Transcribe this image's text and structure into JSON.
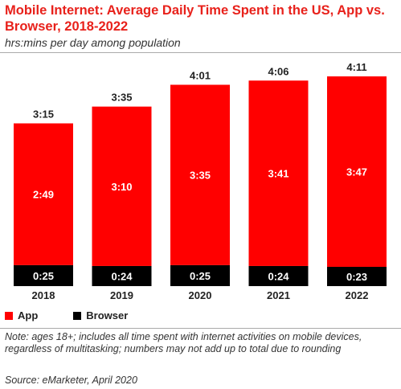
{
  "header": {
    "title": "Mobile Internet: Average Daily Time Spent in the US, App vs. Browser, 2018-2022",
    "subtitle": "hrs:mins per day among population"
  },
  "chart_data": {
    "type": "bar",
    "stacked": true,
    "categories": [
      "2018",
      "2019",
      "2020",
      "2021",
      "2022"
    ],
    "series": [
      {
        "name": "App",
        "color": "#ff0000",
        "values": [
          169,
          190,
          215,
          221,
          227
        ],
        "labels": [
          "2:49",
          "3:10",
          "3:35",
          "3:41",
          "3:47"
        ]
      },
      {
        "name": "Browser",
        "color": "#000000",
        "values": [
          25,
          24,
          25,
          24,
          23
        ],
        "labels": [
          "0:25",
          "0:24",
          "0:25",
          "0:24",
          "0:23"
        ]
      }
    ],
    "totals": [
      195,
      215,
      241,
      246,
      251
    ],
    "total_labels": [
      "3:15",
      "3:35",
      "4:01",
      "4:06",
      "4:11"
    ],
    "units": "minutes",
    "ylim": [
      0,
      251
    ],
    "grid": false,
    "legend_position": "bottom-left"
  },
  "legend": {
    "items": [
      {
        "label": "App",
        "color": "#ff0000"
      },
      {
        "label": "Browser",
        "color": "#000000"
      }
    ]
  },
  "footer": {
    "note": "Note: ages 18+; includes all time spent with internet activities on mobile devices, regardless of multitasking; numbers may not add up to total due to rounding",
    "source": "Source: eMarketer, April 2020"
  }
}
